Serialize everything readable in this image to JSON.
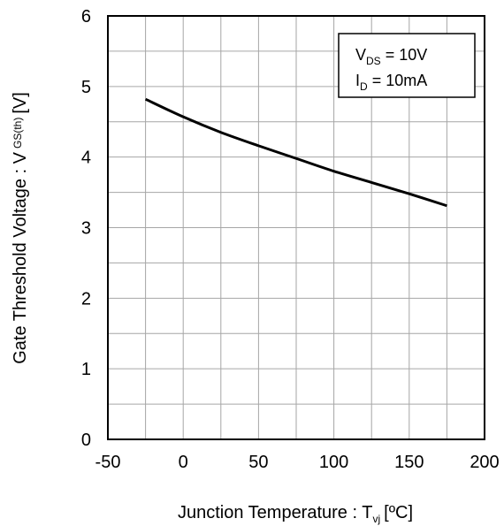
{
  "chart_data": {
    "type": "line",
    "title": "",
    "xlabel": {
      "main": "Junction Temperature : T",
      "sub": "vj",
      "unit": "[ºC]"
    },
    "ylabel": {
      "main": "Gate Threshold Voltage : V",
      "sub": "GS(th)",
      "unit": "[V]"
    },
    "xlim": [
      -50,
      200
    ],
    "ylim": [
      0,
      6
    ],
    "x_major_ticks": [
      -50,
      0,
      50,
      100,
      150,
      200
    ],
    "y_major_ticks": [
      0,
      1,
      2,
      3,
      4,
      5,
      6
    ],
    "x_tick_labels": [
      "-50",
      "0",
      "50",
      "100",
      "150",
      "200"
    ],
    "y_tick_labels": [
      "0",
      "1",
      "2",
      "3",
      "4",
      "5",
      "6"
    ],
    "grid": true,
    "minor_grid_step_x": 25,
    "minor_grid_step_y": 0.5,
    "annotation": {
      "placement": "top-right",
      "line1": {
        "symbol": "V",
        "sub": "DS",
        "value": " = 10V"
      },
      "line2": {
        "symbol": "I",
        "sub": "D",
        "value": " = 10mA"
      }
    },
    "series": [
      {
        "color": "#000000",
        "x": [
          -25,
          0,
          25,
          50,
          75,
          100,
          125,
          150,
          175
        ],
        "y": [
          4.82,
          4.57,
          4.35,
          4.16,
          3.98,
          3.8,
          3.64,
          3.48,
          3.31
        ]
      }
    ]
  }
}
